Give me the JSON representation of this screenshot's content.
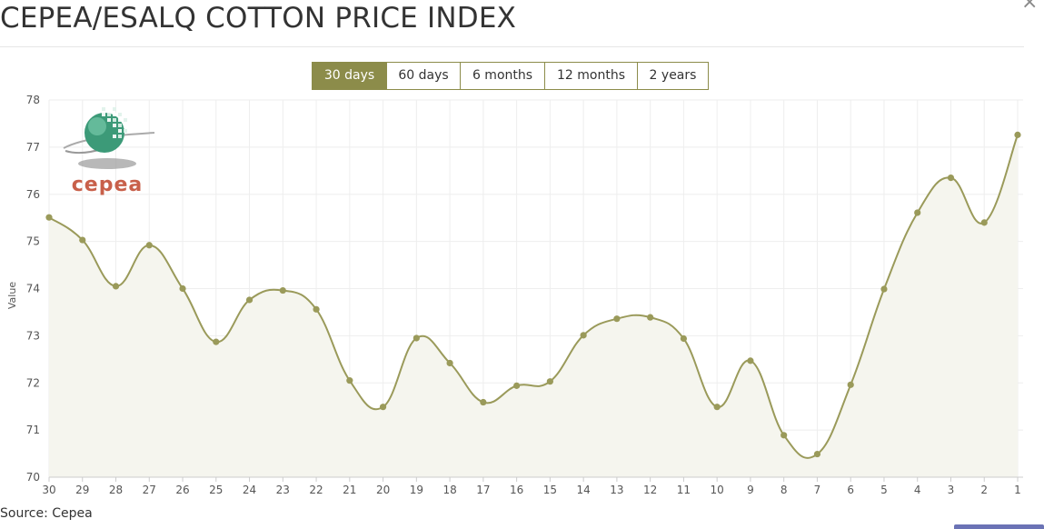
{
  "header": {
    "title": "CEPEA/ESALQ COTTON PRICE INDEX",
    "close_icon": "×"
  },
  "range_tabs": [
    {
      "label": "30 days",
      "active": true
    },
    {
      "label": "60 days",
      "active": false
    },
    {
      "label": "6 months",
      "active": false
    },
    {
      "label": "12 months",
      "active": false
    },
    {
      "label": "2 years",
      "active": false
    }
  ],
  "logo": {
    "text": "cepea",
    "icon": "cepea-globe-logo"
  },
  "source": "Source: Cepea",
  "colors": {
    "accent": "#8c8c4a",
    "line": "#9a9a5a",
    "area": "#f5f5ee",
    "grid": "#eeeeee",
    "logo_text": "#c8604a"
  },
  "chart_data": {
    "type": "area",
    "title": "",
    "xlabel": "",
    "ylabel": "Value",
    "ylim": [
      70,
      78
    ],
    "yticks": [
      70,
      71,
      72,
      73,
      74,
      75,
      76,
      77,
      78
    ],
    "grid": true,
    "x": [
      "30",
      "29",
      "28",
      "27",
      "26",
      "25",
      "24",
      "23",
      "22",
      "21",
      "20",
      "19",
      "18",
      "17",
      "16",
      "15",
      "14",
      "13",
      "12",
      "11",
      "10",
      "9",
      "8",
      "7",
      "6",
      "5",
      "4",
      "3",
      "2",
      "1"
    ],
    "series": [
      {
        "values": [
          75.51,
          75.03,
          74.05,
          74.92,
          74.0,
          72.87,
          73.76,
          73.96,
          73.56,
          72.05,
          71.49,
          72.95,
          72.42,
          71.59,
          71.94,
          72.03,
          73.01,
          73.36,
          73.39,
          72.94,
          71.49,
          72.47,
          70.89,
          70.49,
          71.96,
          73.99,
          75.61,
          76.35,
          75.4,
          77.26
        ]
      }
    ]
  }
}
